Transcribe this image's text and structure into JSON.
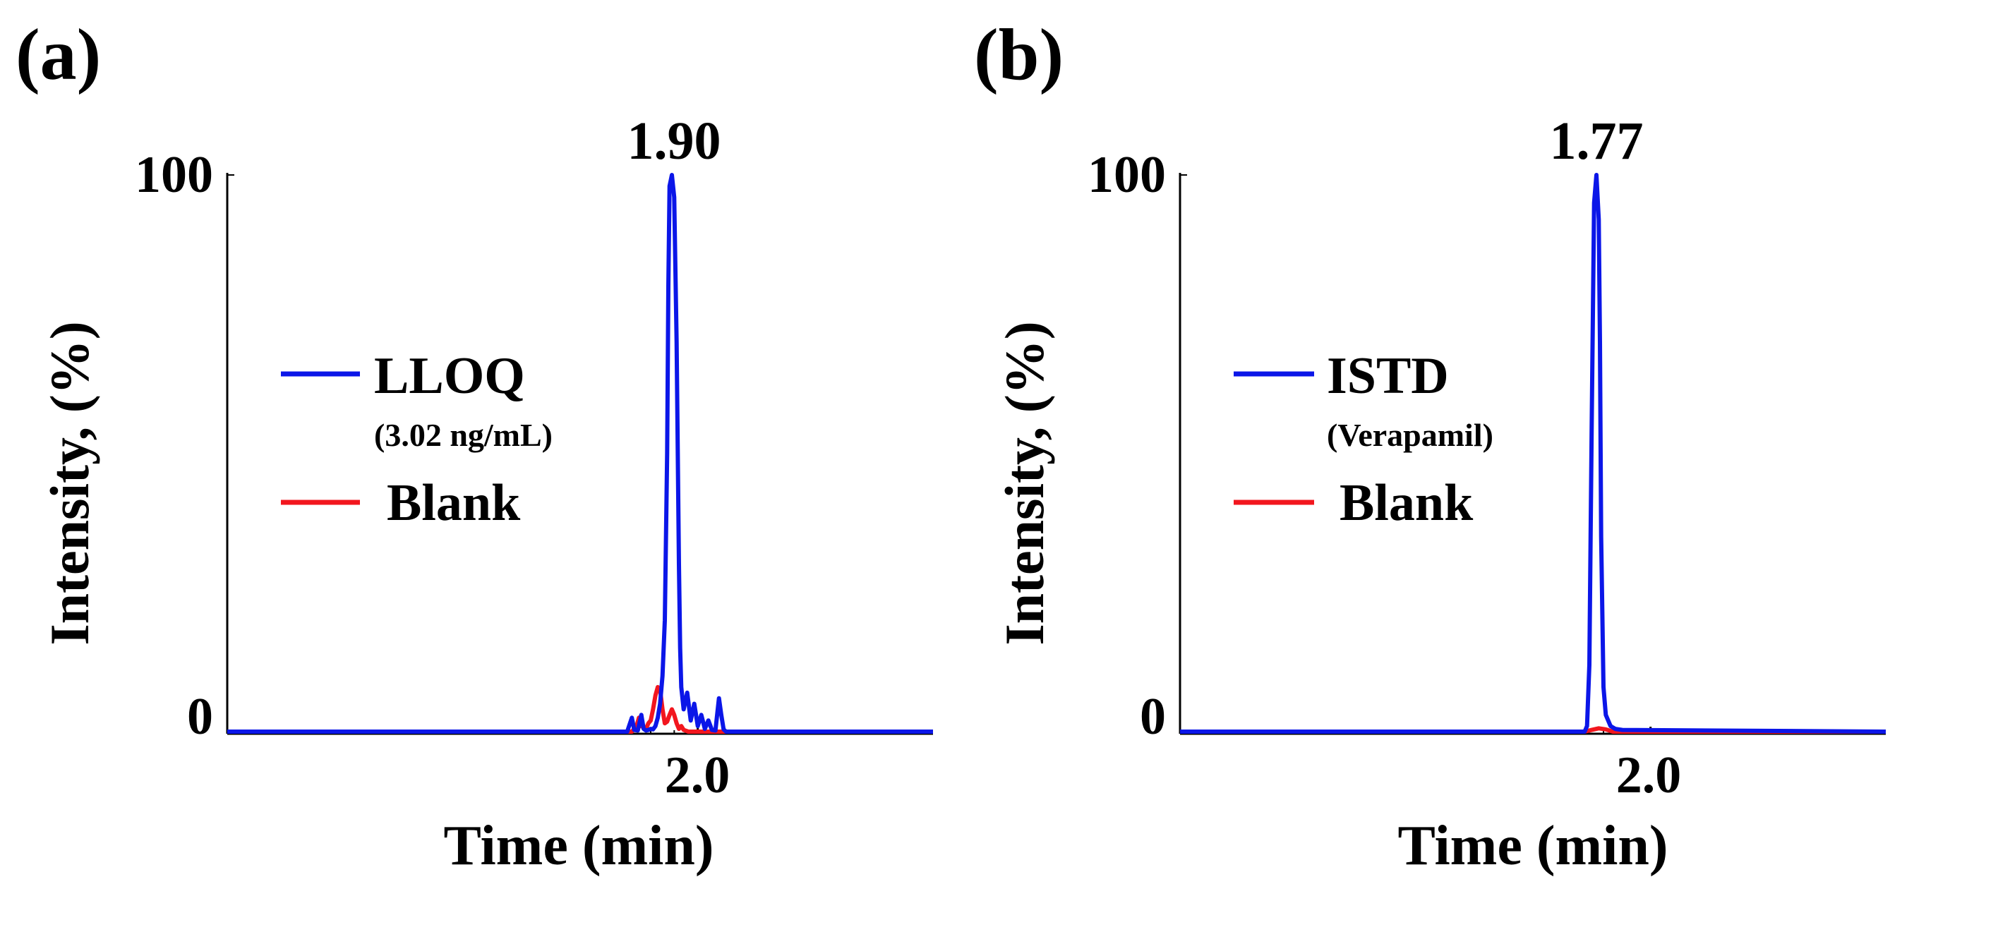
{
  "colors": {
    "lloq": "#0b16e8",
    "istd": "#0b16e8",
    "blank": "#f2161e",
    "axis": "#000000"
  },
  "chart_data": [
    {
      "panel_label": "(a)",
      "type": "line",
      "xlabel": "Time (min)",
      "ylabel": "Intensity, (%)",
      "xlim": [
        0.0,
        3.0
      ],
      "ylim": [
        0,
        100
      ],
      "x_ticks": [
        {
          "value": 2.0,
          "label": "2.0"
        }
      ],
      "y_ticks": [
        {
          "value": 100,
          "label": "100"
        },
        {
          "value": 0,
          "label": "0"
        }
      ],
      "peak_annotation": {
        "x": 1.9,
        "y": 100,
        "label": "1.90"
      },
      "legend": [
        {
          "name": "LLOQ",
          "sub": "(3.02 ng/mL)",
          "color_key": "lloq"
        },
        {
          "name": "Blank",
          "sub": "",
          "color_key": "blank"
        }
      ],
      "series": [
        {
          "name": "LLOQ",
          "color_key": "lloq",
          "x": [
            0.0,
            1.68,
            1.7,
            1.72,
            1.73,
            1.745,
            1.76,
            1.77,
            1.78,
            1.79,
            1.8,
            1.81,
            1.82,
            1.83,
            1.84,
            1.85,
            1.86,
            1.87,
            1.875,
            1.88,
            1.89,
            1.9,
            1.91,
            1.92,
            1.925,
            1.93,
            1.94,
            1.955,
            1.97,
            1.985,
            2.0,
            2.015,
            2.03,
            2.045,
            2.06,
            2.075,
            2.09,
            2.1,
            2.11,
            2.12,
            3.0
          ],
          "y": [
            0,
            0,
            0,
            2.5,
            0.3,
            0.2,
            3.0,
            0.5,
            0.2,
            0.3,
            0.5,
            0.4,
            1.0,
            2.5,
            5.0,
            10,
            20,
            50,
            80,
            98,
            100,
            96,
            70,
            30,
            15,
            8,
            4,
            7,
            2,
            5,
            1,
            3,
            0.5,
            2,
            0.3,
            0.2,
            6,
            3,
            0.4,
            0,
            0
          ]
        },
        {
          "name": "Blank",
          "color_key": "blank",
          "x": [
            0.0,
            1.72,
            1.74,
            1.75,
            1.76,
            1.78,
            1.79,
            1.8,
            1.81,
            1.82,
            1.83,
            1.84,
            1.85,
            1.86,
            1.87,
            1.88,
            1.89,
            1.9,
            1.91,
            1.92,
            1.93,
            1.94,
            1.96,
            3.0
          ],
          "y": [
            0,
            0,
            1,
            2.5,
            1,
            0.5,
            1.5,
            2,
            4,
            6.5,
            8,
            7.5,
            4,
            1.5,
            1.8,
            3,
            4,
            3,
            1.5,
            0.5,
            1,
            0.3,
            0,
            0
          ]
        }
      ]
    },
    {
      "panel_label": "(b)",
      "type": "line",
      "xlabel": "Time (min)",
      "ylabel": "Intensity, (%)",
      "xlim": [
        0.0,
        3.0
      ],
      "ylim": [
        0,
        100
      ],
      "x_ticks": [
        {
          "value": 2.0,
          "label": "2.0"
        }
      ],
      "y_ticks": [
        {
          "value": 100,
          "label": "100"
        },
        {
          "value": 0,
          "label": "0"
        }
      ],
      "peak_annotation": {
        "x": 1.77,
        "y": 100,
        "label": "1.77"
      },
      "legend": [
        {
          "name": "ISTD",
          "sub": "(Verapamil)",
          "color_key": "istd"
        },
        {
          "name": "Blank",
          "sub": "",
          "color_key": "blank"
        }
      ],
      "series": [
        {
          "name": "ISTD",
          "color_key": "istd",
          "x": [
            0.0,
            1.72,
            1.73,
            1.74,
            1.75,
            1.76,
            1.77,
            1.78,
            1.785,
            1.79,
            1.8,
            1.81,
            1.83,
            1.85,
            1.88,
            3.0
          ],
          "y": [
            0,
            0,
            1,
            12,
            55,
            95,
            100,
            92,
            70,
            35,
            8,
            3,
            1,
            0.5,
            0.3,
            0
          ]
        },
        {
          "name": "Blank",
          "color_key": "blank",
          "x": [
            0.0,
            1.72,
            1.75,
            1.78,
            1.81,
            1.84,
            3.0
          ],
          "y": [
            0,
            0,
            0.3,
            0.6,
            0.4,
            0,
            0
          ]
        }
      ]
    }
  ]
}
